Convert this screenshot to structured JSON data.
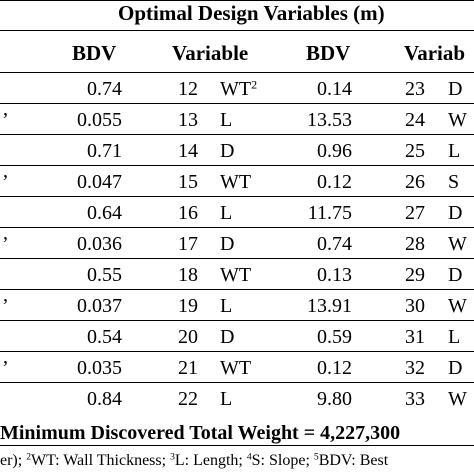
{
  "table": {
    "title": "Optimal Design Variables (m)",
    "headers": {
      "bdv1": "BDV",
      "variable2": "Variable",
      "bdv2": "BDV",
      "variable3": "Variab"
    },
    "rows": [
      {
        "left_mark": "",
        "bdv1": "0.74",
        "num2": "12",
        "var2": "WT",
        "var2_sup": "2",
        "bdv2": "0.14",
        "num3": "23",
        "var3": "D"
      },
      {
        "left_mark": "’",
        "bdv1": "0.055",
        "num2": "13",
        "var2": "L",
        "var2_sup": "",
        "bdv2": "13.53",
        "num3": "24",
        "var3": "W"
      },
      {
        "left_mark": "",
        "bdv1": "0.71",
        "num2": "14",
        "var2": "D",
        "var2_sup": "",
        "bdv2": "0.96",
        "num3": "25",
        "var3": "L"
      },
      {
        "left_mark": "’",
        "bdv1": "0.047",
        "num2": "15",
        "var2": "WT",
        "var2_sup": "",
        "bdv2": "0.12",
        "num3": "26",
        "var3": "S"
      },
      {
        "left_mark": "",
        "bdv1": "0.64",
        "num2": "16",
        "var2": "L",
        "var2_sup": "",
        "bdv2": "11.75",
        "num3": "27",
        "var3": "D"
      },
      {
        "left_mark": "’",
        "bdv1": "0.036",
        "num2": "17",
        "var2": "D",
        "var2_sup": "",
        "bdv2": "0.74",
        "num3": "28",
        "var3": "W"
      },
      {
        "left_mark": "",
        "bdv1": "0.55",
        "num2": "18",
        "var2": "WT",
        "var2_sup": "",
        "bdv2": "0.13",
        "num3": "29",
        "var3": "D"
      },
      {
        "left_mark": "’",
        "bdv1": "0.037",
        "num2": "19",
        "var2": "L",
        "var2_sup": "",
        "bdv2": "13.91",
        "num3": "30",
        "var3": "W"
      },
      {
        "left_mark": "",
        "bdv1": "0.54",
        "num2": "20",
        "var2": "D",
        "var2_sup": "",
        "bdv2": "0.59",
        "num3": "31",
        "var3": "L"
      },
      {
        "left_mark": "’",
        "bdv1": "0.035",
        "num2": "21",
        "var2": "WT",
        "var2_sup": "",
        "bdv2": "0.12",
        "num3": "32",
        "var3": "D"
      },
      {
        "left_mark": "",
        "bdv1": "0.84",
        "num2": "22",
        "var2": "L",
        "var2_sup": "",
        "bdv2": "9.80",
        "num3": "33",
        "var3": "W"
      }
    ],
    "total": "Minimum Discovered Total Weight = 4,227,300",
    "footnote": {
      "lead": "er); ",
      "n2": "2",
      "t2": "WT: Wall Thickness; ",
      "n3": "3",
      "t3": "L: Length; ",
      "n4": "4",
      "t4": "S: Slope; ",
      "n5": "5",
      "t5": "BDV: Best"
    }
  }
}
